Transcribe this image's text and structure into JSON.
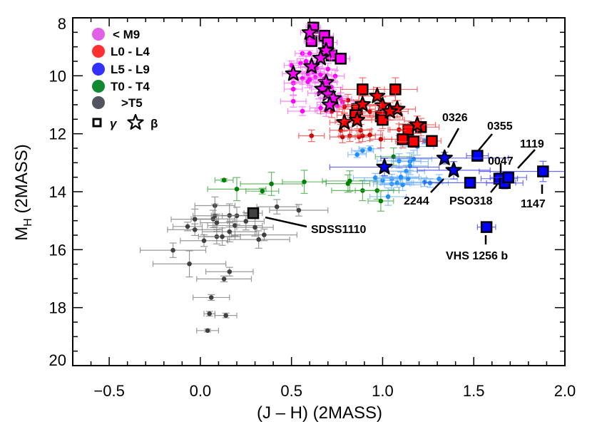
{
  "chart_data": {
    "type": "scatter",
    "title": "",
    "xlabel": "(J – H) (2MASS)",
    "ylabel_main": "M",
    "ylabel_sub": "H",
    "ylabel_rest": " (2MASS)",
    "xlim": [
      -0.7,
      2.0
    ],
    "ylim": [
      20,
      8
    ],
    "y_inverted": true,
    "grid": false,
    "xticks": [
      "−0.5",
      "0.0",
      "0.5",
      "1.0",
      "1.5",
      "2.0"
    ],
    "xtick_values": [
      -0.5,
      0.0,
      0.5,
      1.0,
      1.5,
      2.0
    ],
    "yticks": [
      "8",
      "10",
      "12",
      "14",
      "16",
      "18",
      "20"
    ],
    "ytick_values": [
      8,
      10,
      12,
      14,
      16,
      18,
      20
    ],
    "legend_position": "top-left",
    "legend": [
      {
        "label": "< M9",
        "color": "#e060e8"
      },
      {
        "label": "L0 - L4",
        "color": "#ff3030"
      },
      {
        "label": "L5 - L9",
        "color": "#3333ff"
      },
      {
        "label": "T0 - T4",
        "color": "#108a30"
      },
      {
        "label": ">T5",
        "color": "#50555e"
      }
    ],
    "legend_gamma": "γ",
    "legend_beta": "β",
    "point_format": "[J-H, M_H, err J-H, err M_H]",
    "series": [
      {
        "group": "T5+ field",
        "marker": "dot",
        "color": "#404040",
        "errcolor": "#808080",
        "points": [
          [
            0.08,
            14.48,
            0.11,
            0.3
          ],
          [
            0.42,
            14.52,
            0.11,
            0.25
          ],
          [
            0.54,
            14.64,
            0.16,
            0.2
          ],
          [
            0.08,
            14.83,
            0.12,
            0.4
          ],
          [
            0.16,
            14.82,
            0.1,
            0.4
          ],
          [
            0.2,
            14.83,
            0.08,
            0.3
          ],
          [
            0.07,
            14.94,
            0.12,
            0.3
          ],
          [
            -0.03,
            14.95,
            0.13,
            0.35
          ],
          [
            0.25,
            15.02,
            0.1,
            0.3
          ],
          [
            0.09,
            15.07,
            0.09,
            0.3
          ],
          [
            0.19,
            15.17,
            0.15,
            0.35
          ],
          [
            -0.07,
            15.2,
            0.08,
            0.15
          ],
          [
            0.3,
            15.23,
            0.1,
            0.3
          ],
          [
            -0.03,
            15.31,
            0.15,
            0.2
          ],
          [
            0.16,
            15.38,
            0.15,
            0.35
          ],
          [
            0.35,
            15.49,
            0.18,
            0.2
          ],
          [
            0.09,
            15.55,
            0.1,
            0.25
          ],
          [
            0.12,
            15.55,
            0.1,
            0.3
          ],
          [
            0.02,
            15.69,
            0.13,
            0.2
          ],
          [
            0.32,
            15.65,
            0.17,
            0.3
          ],
          [
            -0.15,
            16.02,
            0.18,
            0.25
          ],
          [
            -0.06,
            16.49,
            0.2,
            0.45
          ],
          [
            0.16,
            16.76,
            0.13,
            0.15
          ],
          [
            0.13,
            17.01,
            0.15,
            0.1
          ],
          [
            0.06,
            17.65,
            0.1,
            0.1
          ],
          [
            0.05,
            18.21,
            0.03,
            0.08
          ],
          [
            0.14,
            18.27,
            0.06,
            0.08
          ],
          [
            0.04,
            18.79,
            0.06,
            0.05
          ]
        ]
      },
      {
        "group": "T0-T4 field",
        "marker": "dot",
        "color": "#008000",
        "errcolor": "#44aa44",
        "points": [
          [
            0.13,
            13.6,
            0.05,
            0.05
          ],
          [
            0.2,
            13.91,
            0.16,
            0.4
          ],
          [
            0.34,
            13.98,
            0.09,
            0.1
          ],
          [
            0.39,
            13.73,
            0.17,
            0.4
          ],
          [
            0.57,
            13.66,
            0.12,
            0.4
          ],
          [
            0.81,
            13.72,
            0.12,
            0.3
          ],
          [
            0.82,
            13.63,
            0.15,
            0.35
          ],
          [
            0.89,
            13.96,
            0.17,
            0.35
          ],
          [
            0.97,
            13.96,
            0.12,
            0.3
          ],
          [
            0.99,
            14.32,
            0.07,
            0.35
          ],
          [
            1.06,
            12.79,
            0.1,
            0.3
          ]
        ]
      },
      {
        "group": "L5-L9 field",
        "marker": "dot",
        "color": "#1e90ff",
        "errcolor": "#70b0ff",
        "points": [
          [
            0.86,
            12.72,
            0.05,
            0.1
          ],
          [
            0.89,
            12.58,
            0.06,
            0.1
          ],
          [
            0.93,
            12.52,
            0.06,
            0.1
          ],
          [
            0.96,
            13.52,
            0.12,
            0.15
          ],
          [
            1.0,
            13.61,
            0.1,
            0.15
          ],
          [
            1.05,
            13.55,
            0.08,
            0.15
          ],
          [
            1.05,
            13.73,
            0.1,
            0.2
          ],
          [
            1.09,
            12.94,
            0.12,
            0.25
          ],
          [
            1.1,
            13.52,
            0.1,
            0.2
          ],
          [
            1.08,
            13.7,
            0.09,
            0.15
          ],
          [
            1.11,
            13.76,
            0.1,
            0.2
          ],
          [
            1.13,
            13.29,
            0.1,
            0.2
          ],
          [
            1.15,
            12.96,
            0.1,
            0.3
          ],
          [
            1.14,
            13.55,
            0.1,
            0.2
          ],
          [
            1.03,
            14.17,
            0.1,
            0.3
          ],
          [
            1.23,
            13.67,
            0.1,
            0.15
          ],
          [
            1.26,
            13.7,
            0.1,
            0.15
          ],
          [
            1.31,
            13.56,
            0.1,
            0.15
          ],
          [
            1.19,
            12.44,
            0.09,
            0.3
          ],
          [
            1.17,
            12.87,
            0.1,
            0.3
          ],
          [
            1.23,
            12.25,
            0.05,
            0.1
          ],
          [
            1.1,
            13.49,
            0.1,
            0.2
          ],
          [
            1.15,
            13.11,
            0.1,
            0.3
          ]
        ]
      },
      {
        "group": "<M9 field",
        "marker": "dot",
        "color": "#ff00ff",
        "errcolor": "#ff66ff",
        "points": [
          [
            0.56,
            9.23,
            0.04,
            0.1
          ],
          [
            0.6,
            9.23,
            0.04,
            0.1
          ],
          [
            0.5,
            9.64,
            0.04,
            0.15
          ],
          [
            0.55,
            9.56,
            0.06,
            0.15
          ],
          [
            0.64,
            9.73,
            0.06,
            0.2
          ],
          [
            0.7,
            9.77,
            0.05,
            0.2
          ],
          [
            0.59,
            9.93,
            0.06,
            0.2
          ],
          [
            0.63,
            10.05,
            0.07,
            0.2
          ],
          [
            0.56,
            10.09,
            0.06,
            0.2
          ],
          [
            0.66,
            9.96,
            0.06,
            0.2
          ],
          [
            0.74,
            10.01,
            0.05,
            0.2
          ],
          [
            0.59,
            10.21,
            0.07,
            0.2
          ],
          [
            0.51,
            10.25,
            0.05,
            0.2
          ],
          [
            0.51,
            10.46,
            0.05,
            0.2
          ],
          [
            0.51,
            10.88,
            0.07,
            0.2
          ],
          [
            0.56,
            11.22,
            0.08,
            0.15
          ],
          [
            0.66,
            11.11,
            0.06,
            0.2
          ],
          [
            0.77,
            10.79,
            0.06,
            0.2
          ],
          [
            0.75,
            11.04,
            0.06,
            0.2
          ],
          [
            0.66,
            10.38,
            0.06,
            0.2
          ],
          [
            0.6,
            10.13,
            0.06,
            0.2
          ],
          [
            0.58,
            9.5,
            0.05,
            0.2
          ],
          [
            0.62,
            9.85,
            0.06,
            0.2
          ],
          [
            0.68,
            10.1,
            0.06,
            0.2
          ],
          [
            0.72,
            10.4,
            0.06,
            0.2
          ],
          [
            0.65,
            10.6,
            0.06,
            0.2
          ],
          [
            0.78,
            10.9,
            0.06,
            0.2
          ],
          [
            0.69,
            11.2,
            0.06,
            0.2
          ]
        ]
      },
      {
        "group": "L0-L4 field",
        "marker": "dot",
        "color": "#cc0000",
        "errcolor": "#ee4444",
        "points": [
          [
            0.81,
            10.84,
            0.06,
            0.2
          ],
          [
            0.72,
            11.24,
            0.06,
            0.2
          ],
          [
            0.79,
            11.07,
            0.06,
            0.2
          ],
          [
            0.61,
            12.07,
            0.07,
            0.2
          ],
          [
            0.77,
            11.88,
            0.06,
            0.2
          ],
          [
            0.78,
            12.11,
            0.07,
            0.2
          ],
          [
            0.82,
            12.07,
            0.06,
            0.2
          ],
          [
            0.87,
            12.11,
            0.06,
            0.2
          ],
          [
            0.88,
            11.88,
            0.06,
            0.2
          ],
          [
            0.89,
            12.07,
            0.07,
            0.2
          ],
          [
            0.93,
            12.04,
            0.07,
            0.2
          ],
          [
            0.99,
            12.19,
            0.06,
            0.3
          ],
          [
            1.09,
            11.86,
            0.06,
            0.2
          ],
          [
            0.93,
            11.24,
            0.07,
            0.2
          ],
          [
            0.81,
            11.57,
            0.07,
            0.2
          ]
        ]
      },
      {
        "group": "<M9 gamma",
        "marker": "square",
        "color": "#ff00ff",
        "errcolor": "#ff66ff",
        "points": [
          [
            0.62,
            8.34,
            0.04,
            0.2
          ],
          [
            0.61,
            8.8,
            0.04,
            0.2
          ],
          [
            0.68,
            8.62,
            0.05,
            0.2
          ],
          [
            0.7,
            8.85,
            0.05,
            0.2
          ],
          [
            0.72,
            9.3,
            0.05,
            0.2
          ],
          [
            0.77,
            9.41,
            0.05,
            0.1
          ]
        ]
      },
      {
        "group": "<M9 beta",
        "marker": "star",
        "color": "#ff00ff",
        "errcolor": "#ff66ff",
        "points": [
          [
            0.6,
            8.51,
            0.05,
            0.3
          ],
          [
            0.69,
            9.13,
            0.05,
            0.2
          ],
          [
            0.66,
            9.39,
            0.05,
            0.2
          ],
          [
            0.61,
            9.68,
            0.06,
            0.2
          ],
          [
            0.51,
            9.93,
            0.06,
            0.2
          ],
          [
            0.69,
            10.23,
            0.06,
            0.3
          ],
          [
            0.67,
            10.46,
            0.06,
            0.3
          ],
          [
            0.7,
            10.63,
            0.07,
            0.3
          ],
          [
            0.73,
            10.78,
            0.07,
            0.3
          ],
          [
            0.71,
            11.0,
            0.07,
            0.3
          ]
        ]
      },
      {
        "group": "L0-L4 gamma",
        "marker": "square",
        "color": "#ff0000",
        "errcolor": "#ff4444",
        "points": [
          [
            0.89,
            10.47,
            0.12,
            0.4
          ],
          [
            1.07,
            10.47,
            0.12,
            0.4
          ],
          [
            0.99,
            11.4,
            0.12,
            0.3
          ],
          [
            1.0,
            11.52,
            0.12,
            0.3
          ],
          [
            1.14,
            11.86,
            0.1,
            0.3
          ],
          [
            1.21,
            11.77,
            0.1,
            0.3
          ],
          [
            1.11,
            12.19,
            0.1,
            0.3
          ],
          [
            1.17,
            12.27,
            0.1,
            0.2
          ],
          [
            1.27,
            12.25,
            0.05,
            0.15
          ],
          [
            0.86,
            11.15,
            0.1,
            0.3
          ],
          [
            0.85,
            11.36,
            0.1,
            0.3
          ]
        ]
      },
      {
        "group": "L0-L4 beta",
        "marker": "star",
        "color": "#ff0000",
        "errcolor": "#ff4444",
        "points": [
          [
            0.97,
            10.7,
            0.1,
            0.3
          ],
          [
            1.0,
            11.03,
            0.1,
            0.3
          ],
          [
            1.08,
            11.15,
            0.1,
            0.3
          ],
          [
            1.19,
            11.69,
            0.1,
            0.3
          ],
          [
            0.79,
            11.61,
            0.08,
            0.3
          ],
          [
            0.86,
            11.53,
            0.08,
            0.3
          ],
          [
            0.89,
            10.99,
            0.1,
            0.3
          ],
          [
            1.04,
            11.23,
            0.1,
            0.3
          ]
        ]
      },
      {
        "group": "L5-L9 gamma",
        "marker": "square",
        "color": "#0000ff",
        "errcolor": "#4444ff",
        "points": [
          [
            1.52,
            12.76,
            0.06,
            0.05
          ],
          [
            1.48,
            13.69,
            0.25,
            0.15
          ],
          [
            1.64,
            13.55,
            0.1,
            0.2
          ],
          [
            1.67,
            13.7,
            0.1,
            0.2
          ],
          [
            1.69,
            13.51,
            0.1,
            0.2
          ],
          [
            1.88,
            13.3,
            0.35,
            0.35
          ],
          [
            1.57,
            15.22,
            0.05,
            0.08
          ]
        ]
      },
      {
        "group": "L5-L9 beta",
        "marker": "star",
        "color": "#0000ff",
        "errcolor": "#4444ff",
        "points": [
          [
            1.34,
            12.84,
            0.35,
            0.2
          ],
          [
            1.39,
            13.26,
            0.2,
            0.3
          ],
          [
            1.01,
            13.15,
            0.3,
            0.3
          ]
        ]
      },
      {
        "group": "T gamma",
        "marker": "square",
        "color": "#404040",
        "errcolor": "#808080",
        "points": [
          [
            0.29,
            14.74,
            0.05,
            0.1
          ]
        ]
      }
    ],
    "annotations": [
      {
        "label": "0326"
      },
      {
        "label": "0355"
      },
      {
        "label": "1119"
      },
      {
        "label": "0047"
      },
      {
        "label": "2244"
      },
      {
        "label": "PSO318"
      },
      {
        "label": "1147"
      },
      {
        "label": "SDSS1110"
      },
      {
        "label": "VHS 1256 b"
      }
    ]
  }
}
